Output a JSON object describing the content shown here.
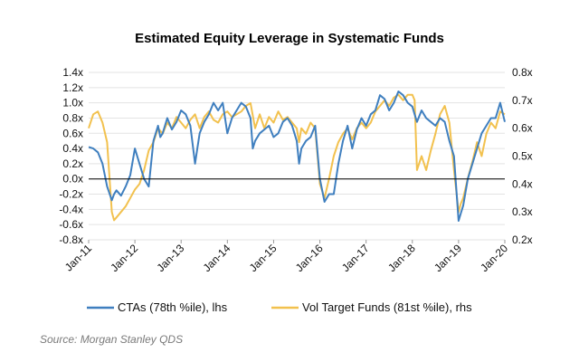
{
  "chart_data": {
    "type": "line",
    "title": "Estimated Equity Leverage in Systematic Funds",
    "x_ticks": [
      "Jan-11",
      "Jan-12",
      "Jan-13",
      "Jan-14",
      "Jan-15",
      "Jan-16",
      "Jan-17",
      "Jan-18",
      "Jan-19",
      "Jan-20"
    ],
    "y_left": {
      "ticks": [
        "1.4x",
        "1.2x",
        "1.0x",
        "0.8x",
        "0.6x",
        "0.4x",
        "0.2x",
        "0.0x",
        "-0.2x",
        "-0.4x",
        "-0.6x",
        "-0.8x"
      ],
      "ylim": [
        -0.8,
        1.4
      ]
    },
    "y_right": {
      "ticks": [
        "0.8x",
        "0.7x",
        "0.6x",
        "0.5x",
        "0.4x",
        "0.3x",
        "0.2x"
      ],
      "ylim": [
        0.2,
        0.8
      ]
    },
    "xlim": [
      2011.0,
      2020.0
    ],
    "series": [
      {
        "name": "CTAs (78th %ile), lhs",
        "axis": "left",
        "color": "#3F7FBF",
        "x": [
          2011.0,
          2011.1,
          2011.2,
          2011.3,
          2011.4,
          2011.5,
          2011.55,
          2011.6,
          2011.7,
          2011.8,
          2011.9,
          2012.0,
          2012.1,
          2012.2,
          2012.3,
          2012.35,
          2012.4,
          2012.5,
          2012.55,
          2012.6,
          2012.7,
          2012.8,
          2012.9,
          2013.0,
          2013.1,
          2013.2,
          2013.3,
          2013.35,
          2013.4,
          2013.5,
          2013.6,
          2013.7,
          2013.8,
          2013.9,
          2014.0,
          2014.1,
          2014.2,
          2014.3,
          2014.4,
          2014.5,
          2014.55,
          2014.6,
          2014.7,
          2014.8,
          2014.9,
          2015.0,
          2015.1,
          2015.2,
          2015.3,
          2015.4,
          2015.5,
          2015.55,
          2015.6,
          2015.7,
          2015.8,
          2015.9,
          2016.0,
          2016.1,
          2016.2,
          2016.3,
          2016.4,
          2016.5,
          2016.6,
          2016.7,
          2016.8,
          2016.9,
          2017.0,
          2017.1,
          2017.2,
          2017.3,
          2017.4,
          2017.5,
          2017.6,
          2017.7,
          2017.8,
          2017.9,
          2018.0,
          2018.05,
          2018.1,
          2018.2,
          2018.3,
          2018.4,
          2018.5,
          2018.6,
          2018.7,
          2018.8,
          2018.9,
          2019.0,
          2019.05,
          2019.1,
          2019.2,
          2019.3,
          2019.4,
          2019.5,
          2019.6,
          2019.7,
          2019.8,
          2019.9,
          2020.0
        ],
        "values": [
          0.42,
          0.4,
          0.35,
          0.2,
          -0.1,
          -0.28,
          -0.2,
          -0.15,
          -0.22,
          -0.1,
          0.05,
          0.4,
          0.2,
          0.0,
          -0.1,
          0.2,
          0.5,
          0.7,
          0.55,
          0.6,
          0.8,
          0.65,
          0.75,
          0.9,
          0.85,
          0.7,
          0.2,
          0.4,
          0.6,
          0.75,
          0.85,
          1.0,
          0.9,
          1.0,
          0.6,
          0.8,
          0.9,
          1.0,
          0.95,
          0.8,
          0.4,
          0.5,
          0.6,
          0.65,
          0.7,
          0.55,
          0.6,
          0.75,
          0.8,
          0.7,
          0.5,
          0.2,
          0.4,
          0.5,
          0.55,
          0.7,
          0.0,
          -0.3,
          -0.2,
          -0.2,
          0.2,
          0.5,
          0.7,
          0.4,
          0.65,
          0.8,
          0.7,
          0.85,
          0.9,
          1.1,
          1.05,
          0.9,
          1.0,
          1.15,
          1.1,
          1.0,
          0.95,
          0.85,
          0.75,
          0.9,
          0.8,
          0.75,
          0.7,
          0.8,
          0.75,
          0.5,
          0.3,
          -0.55,
          -0.45,
          -0.35,
          0.0,
          0.2,
          0.4,
          0.6,
          0.7,
          0.8,
          0.8,
          1.0,
          0.75
        ]
      },
      {
        "name": "Vol Target Funds (81st %ile), rhs",
        "axis": "right",
        "color": "#F2C14E",
        "x": [
          2011.0,
          2011.1,
          2011.2,
          2011.3,
          2011.4,
          2011.5,
          2011.55,
          2011.6,
          2011.7,
          2011.8,
          2011.9,
          2012.0,
          2012.1,
          2012.2,
          2012.3,
          2012.4,
          2012.5,
          2012.6,
          2012.7,
          2012.8,
          2012.9,
          2013.0,
          2013.1,
          2013.2,
          2013.3,
          2013.4,
          2013.5,
          2013.6,
          2013.7,
          2013.8,
          2013.9,
          2014.0,
          2014.1,
          2014.2,
          2014.3,
          2014.4,
          2014.5,
          2014.6,
          2014.7,
          2014.8,
          2014.9,
          2015.0,
          2015.1,
          2015.2,
          2015.3,
          2015.4,
          2015.5,
          2015.55,
          2015.6,
          2015.7,
          2015.8,
          2015.9,
          2016.0,
          2016.1,
          2016.2,
          2016.3,
          2016.4,
          2016.5,
          2016.6,
          2016.7,
          2016.8,
          2016.9,
          2017.0,
          2017.1,
          2017.2,
          2017.3,
          2017.4,
          2017.5,
          2017.6,
          2017.7,
          2017.8,
          2017.9,
          2018.0,
          2018.05,
          2018.1,
          2018.2,
          2018.3,
          2018.4,
          2018.5,
          2018.6,
          2018.7,
          2018.8,
          2018.9,
          2019.0,
          2019.05,
          2019.1,
          2019.2,
          2019.3,
          2019.4,
          2019.5,
          2019.6,
          2019.7,
          2019.8,
          2019.9,
          2020.0
        ],
        "values": [
          0.6,
          0.65,
          0.66,
          0.62,
          0.55,
          0.3,
          0.27,
          0.28,
          0.3,
          0.32,
          0.35,
          0.38,
          0.4,
          0.45,
          0.52,
          0.55,
          0.6,
          0.58,
          0.62,
          0.6,
          0.64,
          0.62,
          0.6,
          0.63,
          0.65,
          0.6,
          0.64,
          0.66,
          0.63,
          0.62,
          0.65,
          0.66,
          0.64,
          0.65,
          0.66,
          0.68,
          0.69,
          0.6,
          0.65,
          0.6,
          0.64,
          0.62,
          0.66,
          0.63,
          0.64,
          0.62,
          0.6,
          0.55,
          0.6,
          0.58,
          0.62,
          0.6,
          0.4,
          0.35,
          0.42,
          0.5,
          0.55,
          0.58,
          0.6,
          0.56,
          0.6,
          0.62,
          0.6,
          0.62,
          0.66,
          0.68,
          0.7,
          0.68,
          0.71,
          0.72,
          0.7,
          0.72,
          0.72,
          0.7,
          0.45,
          0.5,
          0.45,
          0.52,
          0.58,
          0.65,
          0.68,
          0.62,
          0.45,
          0.3,
          0.33,
          0.35,
          0.42,
          0.48,
          0.55,
          0.5,
          0.58,
          0.62,
          0.6,
          0.66,
          0.65
        ]
      }
    ],
    "source": "Source: Morgan Stanley QDS"
  }
}
